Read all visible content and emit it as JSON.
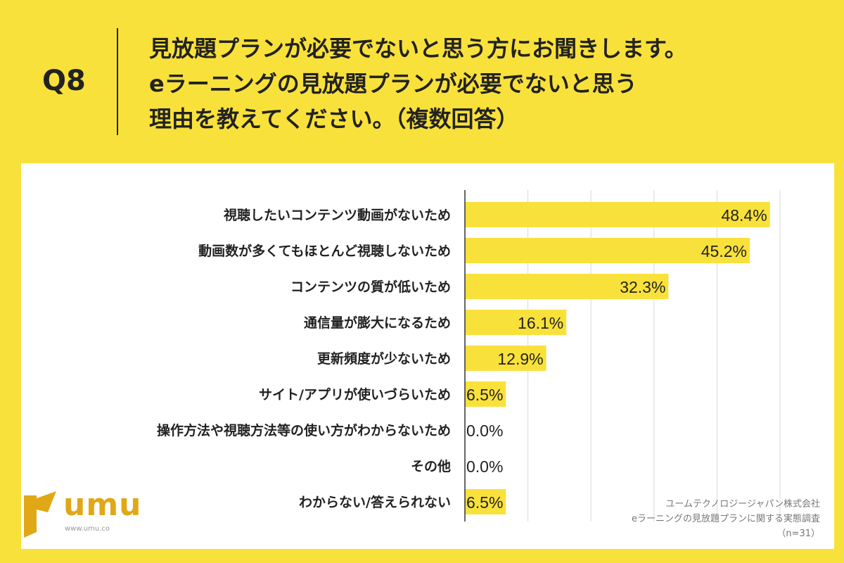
{
  "question": {
    "label": "Q8",
    "lines": [
      "見放題プランが必要でないと思う方にお聞きします。",
      "eラーニングの見放題プランが必要でないと思う",
      "理由を教えてください。（複数回答）"
    ]
  },
  "chart_data": {
    "type": "bar",
    "orientation": "horizontal",
    "categories": [
      "視聴したいコンテンツ動画がないため",
      "動画数が多くてもほとんど視聴しないため",
      "コンテンツの質が低いため",
      "通信量が膨大になるため",
      "更新頻度が少ないため",
      "サイト/アプリが使いづらいため",
      "操作方法や視聴方法等の使い方がわからないため",
      "その他",
      "わからない/答えられない"
    ],
    "values": [
      48.4,
      45.2,
      32.3,
      16.1,
      12.9,
      6.5,
      0.0,
      0.0,
      6.5
    ],
    "value_labels": [
      "48.4%",
      "45.2%",
      "32.3%",
      "16.1%",
      "12.9%",
      "6.5%",
      "0.0%",
      "0.0%",
      "6.5%"
    ],
    "xlim": [
      0,
      50
    ],
    "grid": true,
    "bar_color": "#f9e13b"
  },
  "logo": {
    "text": "umu",
    "sub": "www.umu.co",
    "color": "#e0a817"
  },
  "source": {
    "lines": [
      "ユームテクノロジージャパン株式会社",
      "eラーニングの見放題プランに関する実態調査",
      "（n=31）"
    ]
  },
  "colors": {
    "background": "#f9e13b",
    "panel": "#ffffff",
    "grid": "#d8d8d8"
  }
}
